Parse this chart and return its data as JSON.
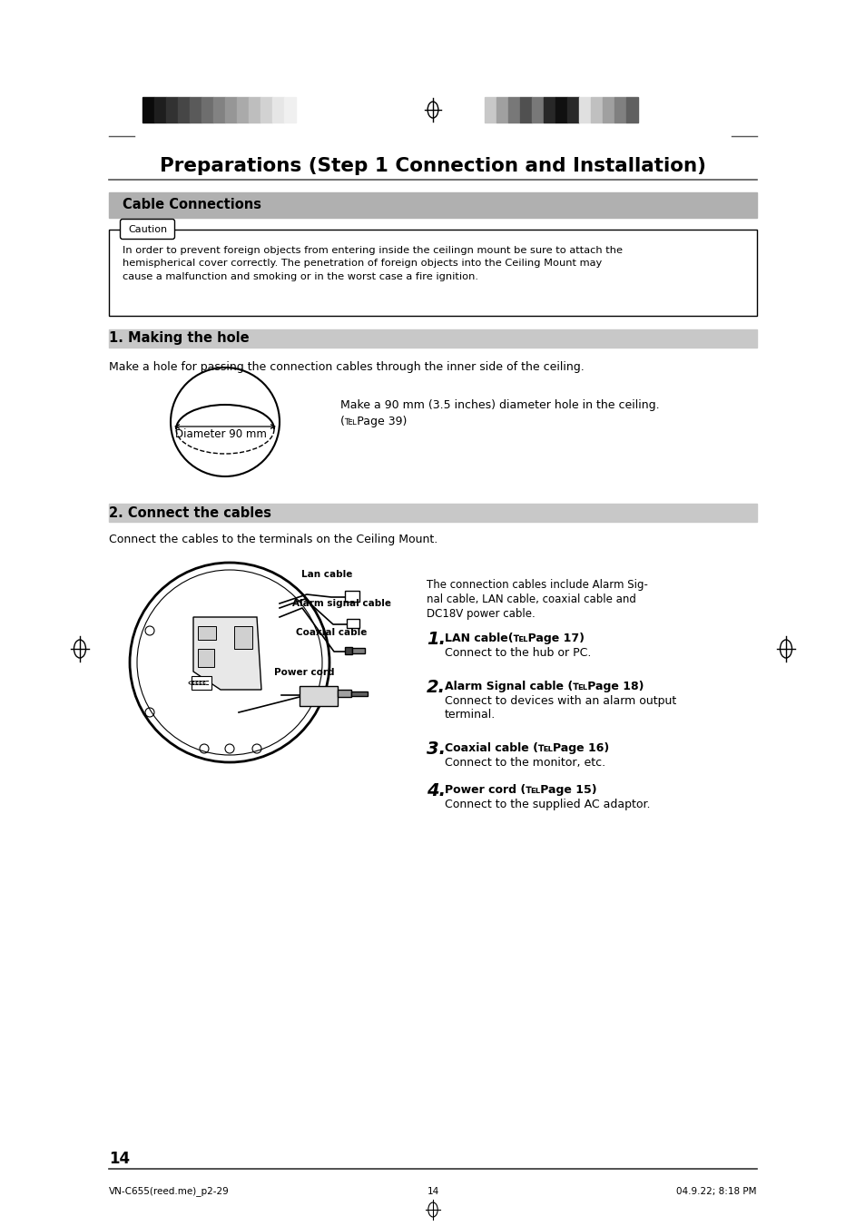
{
  "title": "Preparations (Step 1 Connection and Installation)",
  "section1": "Cable Connections",
  "caution_label": "Caution",
  "caution_text": "In order to prevent foreign objects from entering inside the ceilingn mount be sure to attach the\nhemispherical cover correctly. The penetration of foreign objects into the Ceiling Mount may\ncause a malfunction and smoking or in the worst case a fire ignition.",
  "subsection1": "1. Making the hole",
  "making_hole_text": "Make a hole for passing the connection cables through the inner side of the ceiling.",
  "diameter_label": "Diameter 90 mm",
  "hole_note1": "Make a 90 mm (3.5 inches) diameter hole in the ceiling.",
  "hole_note2": "(℡Page 39)",
  "subsection2": "2. Connect the cables",
  "connect_intro": "Connect the cables to the terminals on the Ceiling Mount.",
  "connect_desc1": "The connection cables include Alarm Sig-",
  "connect_desc2": "nal cable, LAN cable, coaxial cable and",
  "connect_desc3": "DC18V power cable.",
  "cable1_label": "LAN cable(℡Page 17)",
  "cable1_desc": "Connect to the hub or PC.",
  "cable2_label": "Alarm Signal cable (℡Page 18)",
  "cable2_desc1": "Connect to devices with an alarm output",
  "cable2_desc2": "terminal.",
  "cable3_label": "Coaxial cable (℡Page 16)",
  "cable3_desc": "Connect to the monitor, etc.",
  "cable4_label": "Power cord (℡Page 15)",
  "cable4_desc": "Connect to the supplied AC adaptor.",
  "page_number": "14",
  "footer_left": "VN-C655(reed.me)_p2-29",
  "footer_center": "14",
  "footer_right": "04.9.22; 8:18 PM",
  "bg_color": "#ffffff",
  "section_bg": "#b0b0b0",
  "subsection_bg": "#c8c8c8",
  "text_color": "#000000",
  "left_bar_colors": [
    "#0a0a0a",
    "#1e1e1e",
    "#323232",
    "#464646",
    "#5a5a5a",
    "#6e6e6e",
    "#828282",
    "#969696",
    "#aaaaaa",
    "#bebebe",
    "#d2d2d2",
    "#e6e6e6",
    "#f0f0f0"
  ],
  "right_bar_colors": [
    "#c8c8c8",
    "#a0a0a0",
    "#787878",
    "#505050",
    "#787878",
    "#282828",
    "#101010",
    "#282828",
    "#e0e0e0",
    "#c0c0c0",
    "#a0a0a0",
    "#808080",
    "#606060"
  ]
}
